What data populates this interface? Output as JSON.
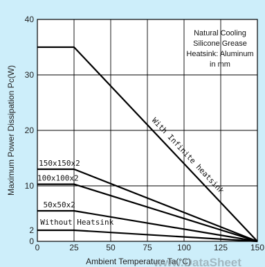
{
  "chart_data": {
    "type": "line",
    "xlabel": "Ambient Temperature Ta(°C)",
    "ylabel": "Maximum Power Dissipation Pc(W)",
    "xlim": [
      0,
      150
    ],
    "ylim": [
      0,
      40
    ],
    "x_ticks": [
      "0",
      "25",
      "50",
      "75",
      "100",
      "125",
      "150"
    ],
    "y_ticks": [
      "0",
      "2",
      "10",
      "20",
      "30",
      "40"
    ],
    "grid": true,
    "annotation_lines": [
      "Natural Cooling",
      "Silicone Grease",
      "Heatsink: Aluminum",
      "in mm"
    ],
    "watermark": "www.DataSheet",
    "series": [
      {
        "name": "With Infinite heatsink",
        "x": [
          0,
          25,
          150
        ],
        "y": [
          35,
          35,
          0
        ]
      },
      {
        "name": "150x150x2",
        "x": [
          0,
          25,
          150
        ],
        "y": [
          13,
          13,
          0
        ]
      },
      {
        "name": "100x100x2",
        "x": [
          0,
          25,
          150
        ],
        "y": [
          10.3,
          10.3,
          0
        ]
      },
      {
        "name": "50x50x2",
        "x": [
          0,
          25,
          150
        ],
        "y": [
          5.5,
          5.5,
          0
        ]
      },
      {
        "name": "Without Heatsink",
        "x": [
          0,
          25,
          150
        ],
        "y": [
          2,
          2,
          0
        ]
      }
    ]
  }
}
